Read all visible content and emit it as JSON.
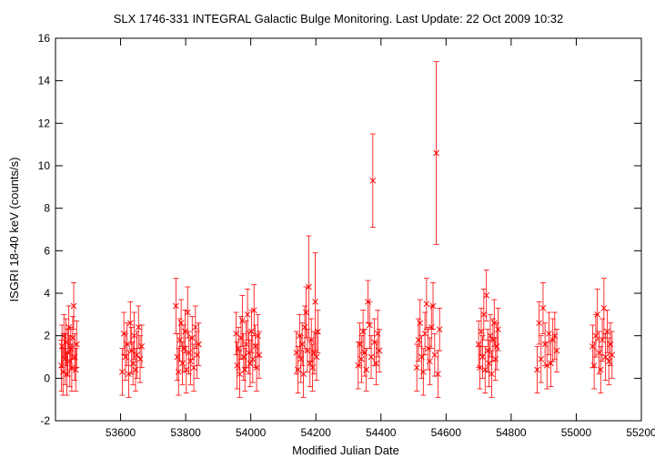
{
  "chart_data": {
    "type": "scatter",
    "title": "SLX 1746-331   INTEGRAL Galactic Bulge Monitoring.  Last Update: 22 Oct 2009 10:32",
    "xlabel": "Modified Julian Date",
    "ylabel": "ISGRI 18-40 keV (counts/s)",
    "xlim": [
      53400,
      55200
    ],
    "ylim": [
      -2,
      16
    ],
    "xticks": [
      53600,
      53800,
      54000,
      54200,
      54400,
      54600,
      54800,
      55000,
      55200
    ],
    "yticks": [
      -2,
      0,
      2,
      4,
      6,
      8,
      10,
      12,
      14,
      16
    ],
    "grid": false,
    "marker": "x",
    "colors": {
      "series": "#ff0000",
      "axes": "#000000"
    },
    "series": [
      {
        "points": [
          {
            "x": 53418,
            "y": 0.6,
            "err": 1.2
          },
          {
            "x": 53420,
            "y": 1.5,
            "err": 1.0
          },
          {
            "x": 53423,
            "y": 0.3,
            "err": 1.1
          },
          {
            "x": 53426,
            "y": 2.0,
            "err": 1.0
          },
          {
            "x": 53429,
            "y": 0.9,
            "err": 1.2
          },
          {
            "x": 53432,
            "y": 1.7,
            "err": 1.1
          },
          {
            "x": 53435,
            "y": 0.2,
            "err": 1.0
          },
          {
            "x": 53438,
            "y": 1.2,
            "err": 1.1
          },
          {
            "x": 53441,
            "y": 2.4,
            "err": 1.0
          },
          {
            "x": 53444,
            "y": 0.8,
            "err": 1.2
          },
          {
            "x": 53447,
            "y": 1.4,
            "err": 1.0
          },
          {
            "x": 53450,
            "y": 0.5,
            "err": 1.1
          },
          {
            "x": 53453,
            "y": 1.9,
            "err": 1.0
          },
          {
            "x": 53456,
            "y": 3.4,
            "err": 1.1
          },
          {
            "x": 53459,
            "y": 1.0,
            "err": 1.1
          },
          {
            "x": 53462,
            "y": 0.4,
            "err": 1.0
          },
          {
            "x": 53465,
            "y": 1.6,
            "err": 1.1
          },
          {
            "x": 53605,
            "y": 0.3,
            "err": 1.1
          },
          {
            "x": 53610,
            "y": 2.1,
            "err": 1.0
          },
          {
            "x": 53615,
            "y": 1.0,
            "err": 1.1
          },
          {
            "x": 53620,
            "y": 1.6,
            "err": 1.0
          },
          {
            "x": 53625,
            "y": 0.2,
            "err": 1.1
          },
          {
            "x": 53630,
            "y": 2.6,
            "err": 1.0
          },
          {
            "x": 53634,
            "y": 1.3,
            "err": 1.1
          },
          {
            "x": 53638,
            "y": 0.7,
            "err": 1.0
          },
          {
            "x": 53642,
            "y": 2.0,
            "err": 1.1
          },
          {
            "x": 53646,
            "y": 0.4,
            "err": 1.0
          },
          {
            "x": 53650,
            "y": 1.1,
            "err": 1.1
          },
          {
            "x": 53655,
            "y": 2.4,
            "err": 1.0
          },
          {
            "x": 53660,
            "y": 0.9,
            "err": 1.1
          },
          {
            "x": 53665,
            "y": 1.5,
            "err": 1.0
          },
          {
            "x": 53770,
            "y": 3.4,
            "err": 1.3
          },
          {
            "x": 53774,
            "y": 1.0,
            "err": 1.1
          },
          {
            "x": 53778,
            "y": 0.3,
            "err": 1.1
          },
          {
            "x": 53782,
            "y": 1.8,
            "err": 1.0
          },
          {
            "x": 53786,
            "y": 2.6,
            "err": 1.1
          },
          {
            "x": 53790,
            "y": 0.7,
            "err": 1.0
          },
          {
            "x": 53794,
            "y": 1.4,
            "err": 1.1
          },
          {
            "x": 53798,
            "y": 2.2,
            "err": 1.0
          },
          {
            "x": 53802,
            "y": 0.4,
            "err": 1.1
          },
          {
            "x": 53806,
            "y": 3.1,
            "err": 1.2
          },
          {
            "x": 53810,
            "y": 1.2,
            "err": 1.0
          },
          {
            "x": 53815,
            "y": 0.8,
            "err": 1.1
          },
          {
            "x": 53820,
            "y": 1.9,
            "err": 1.0
          },
          {
            "x": 53825,
            "y": 0.5,
            "err": 1.1
          },
          {
            "x": 53830,
            "y": 2.4,
            "err": 1.0
          },
          {
            "x": 53835,
            "y": 1.1,
            "err": 1.1
          },
          {
            "x": 53840,
            "y": 1.6,
            "err": 1.0
          },
          {
            "x": 53955,
            "y": 2.1,
            "err": 1.0
          },
          {
            "x": 53958,
            "y": 0.6,
            "err": 1.1
          },
          {
            "x": 53962,
            "y": 1.4,
            "err": 1.0
          },
          {
            "x": 53966,
            "y": 0.2,
            "err": 1.1
          },
          {
            "x": 53970,
            "y": 1.9,
            "err": 1.0
          },
          {
            "x": 53974,
            "y": 2.7,
            "err": 1.2
          },
          {
            "x": 53978,
            "y": 1.0,
            "err": 1.1
          },
          {
            "x": 53982,
            "y": 0.4,
            "err": 1.0
          },
          {
            "x": 53986,
            "y": 1.6,
            "err": 1.1
          },
          {
            "x": 53990,
            "y": 3.0,
            "err": 1.2
          },
          {
            "x": 53994,
            "y": 1.2,
            "err": 1.0
          },
          {
            "x": 53998,
            "y": 0.7,
            "err": 1.1
          },
          {
            "x": 54002,
            "y": 2.2,
            "err": 1.0
          },
          {
            "x": 54006,
            "y": 0.9,
            "err": 1.1
          },
          {
            "x": 54010,
            "y": 3.2,
            "err": 1.2
          },
          {
            "x": 54014,
            "y": 1.5,
            "err": 1.0
          },
          {
            "x": 54018,
            "y": 0.5,
            "err": 1.1
          },
          {
            "x": 54022,
            "y": 2.0,
            "err": 1.0
          },
          {
            "x": 54026,
            "y": 1.1,
            "err": 1.1
          },
          {
            "x": 54140,
            "y": 1.2,
            "err": 1.0
          },
          {
            "x": 54145,
            "y": 0.4,
            "err": 1.1
          },
          {
            "x": 54150,
            "y": 2.0,
            "err": 1.0
          },
          {
            "x": 54154,
            "y": 0.9,
            "err": 1.1
          },
          {
            "x": 54158,
            "y": 1.6,
            "err": 1.0
          },
          {
            "x": 54162,
            "y": 0.2,
            "err": 1.1
          },
          {
            "x": 54166,
            "y": 2.4,
            "err": 1.0
          },
          {
            "x": 54170,
            "y": 3.1,
            "err": 1.2
          },
          {
            "x": 54174,
            "y": 1.3,
            "err": 1.0
          },
          {
            "x": 54178,
            "y": 4.3,
            "err": 2.4
          },
          {
            "x": 54182,
            "y": 0.7,
            "err": 1.1
          },
          {
            "x": 54186,
            "y": 1.8,
            "err": 1.0
          },
          {
            "x": 54190,
            "y": 0.5,
            "err": 1.1
          },
          {
            "x": 54194,
            "y": 1.2,
            "err": 1.0
          },
          {
            "x": 54198,
            "y": 3.6,
            "err": 2.3
          },
          {
            "x": 54202,
            "y": 1.0,
            "err": 1.1
          },
          {
            "x": 54206,
            "y": 2.2,
            "err": 1.0
          },
          {
            "x": 54330,
            "y": 0.6,
            "err": 1.1
          },
          {
            "x": 54335,
            "y": 1.6,
            "err": 1.0
          },
          {
            "x": 54340,
            "y": 0.9,
            "err": 1.1
          },
          {
            "x": 54345,
            "y": 2.2,
            "err": 1.0
          },
          {
            "x": 54350,
            "y": 1.2,
            "err": 1.1
          },
          {
            "x": 54355,
            "y": 0.4,
            "err": 1.0
          },
          {
            "x": 54360,
            "y": 3.6,
            "err": 1.0
          },
          {
            "x": 54365,
            "y": 2.5,
            "err": 1.1
          },
          {
            "x": 54370,
            "y": 1.0,
            "err": 1.0
          },
          {
            "x": 54375,
            "y": 9.3,
            "err": 2.2
          },
          {
            "x": 54380,
            "y": 1.7,
            "err": 1.1
          },
          {
            "x": 54385,
            "y": 0.7,
            "err": 1.0
          },
          {
            "x": 54390,
            "y": 2.1,
            "err": 1.1
          },
          {
            "x": 54395,
            "y": 1.3,
            "err": 1.0
          },
          {
            "x": 54510,
            "y": 0.5,
            "err": 1.1
          },
          {
            "x": 54515,
            "y": 1.8,
            "err": 1.0
          },
          {
            "x": 54520,
            "y": 2.6,
            "err": 1.1
          },
          {
            "x": 54525,
            "y": 1.0,
            "err": 1.0
          },
          {
            "x": 54530,
            "y": 0.3,
            "err": 1.1
          },
          {
            "x": 54535,
            "y": 2.1,
            "err": 1.0
          },
          {
            "x": 54540,
            "y": 3.5,
            "err": 1.2
          },
          {
            "x": 54545,
            "y": 1.4,
            "err": 1.0
          },
          {
            "x": 54550,
            "y": 0.8,
            "err": 1.1
          },
          {
            "x": 54555,
            "y": 2.4,
            "err": 1.0
          },
          {
            "x": 54560,
            "y": 3.4,
            "err": 1.1
          },
          {
            "x": 54565,
            "y": 1.1,
            "err": 1.0
          },
          {
            "x": 54570,
            "y": 10.6,
            "err": 4.3
          },
          {
            "x": 54575,
            "y": 0.2,
            "err": 1.1
          },
          {
            "x": 54580,
            "y": 2.3,
            "err": 1.0
          },
          {
            "x": 54700,
            "y": 1.6,
            "err": 1.1
          },
          {
            "x": 54704,
            "y": 0.5,
            "err": 1.0
          },
          {
            "x": 54708,
            "y": 2.2,
            "err": 1.1
          },
          {
            "x": 54712,
            "y": 1.0,
            "err": 1.0
          },
          {
            "x": 54716,
            "y": 3.0,
            "err": 1.2
          },
          {
            "x": 54720,
            "y": 0.4,
            "err": 1.1
          },
          {
            "x": 54724,
            "y": 3.9,
            "err": 1.2
          },
          {
            "x": 54728,
            "y": 1.3,
            "err": 1.0
          },
          {
            "x": 54732,
            "y": 0.7,
            "err": 1.1
          },
          {
            "x": 54736,
            "y": 2.0,
            "err": 1.0
          },
          {
            "x": 54740,
            "y": 0.2,
            "err": 1.1
          },
          {
            "x": 54744,
            "y": 1.8,
            "err": 1.0
          },
          {
            "x": 54748,
            "y": 2.6,
            "err": 1.1
          },
          {
            "x": 54752,
            "y": 0.9,
            "err": 1.0
          },
          {
            "x": 54756,
            "y": 1.5,
            "err": 1.1
          },
          {
            "x": 54760,
            "y": 2.3,
            "err": 1.0
          },
          {
            "x": 54880,
            "y": 0.4,
            "err": 1.1
          },
          {
            "x": 54886,
            "y": 2.6,
            "err": 1.0
          },
          {
            "x": 54892,
            "y": 0.9,
            "err": 1.1
          },
          {
            "x": 54898,
            "y": 3.3,
            "err": 1.2
          },
          {
            "x": 54904,
            "y": 1.6,
            "err": 1.0
          },
          {
            "x": 54910,
            "y": 0.6,
            "err": 1.1
          },
          {
            "x": 54916,
            "y": 2.1,
            "err": 1.0
          },
          {
            "x": 54922,
            "y": 0.7,
            "err": 1.1
          },
          {
            "x": 54928,
            "y": 1.8,
            "err": 1.0
          },
          {
            "x": 54934,
            "y": 2.0,
            "err": 1.1
          },
          {
            "x": 54940,
            "y": 1.3,
            "err": 1.0
          },
          {
            "x": 55050,
            "y": 1.5,
            "err": 1.0
          },
          {
            "x": 55055,
            "y": 0.6,
            "err": 1.1
          },
          {
            "x": 55060,
            "y": 2.0,
            "err": 1.0
          },
          {
            "x": 55065,
            "y": 3.0,
            "err": 1.2
          },
          {
            "x": 55070,
            "y": 1.2,
            "err": 1.0
          },
          {
            "x": 55075,
            "y": 0.4,
            "err": 1.1
          },
          {
            "x": 55080,
            "y": 1.8,
            "err": 1.0
          },
          {
            "x": 55085,
            "y": 3.3,
            "err": 1.4
          },
          {
            "x": 55090,
            "y": 1.0,
            "err": 1.1
          },
          {
            "x": 55095,
            "y": 2.2,
            "err": 1.0
          },
          {
            "x": 55100,
            "y": 0.8,
            "err": 1.1
          },
          {
            "x": 55105,
            "y": 1.6,
            "err": 1.0
          },
          {
            "x": 55110,
            "y": 1.1,
            "err": 1.1
          }
        ]
      }
    ]
  }
}
